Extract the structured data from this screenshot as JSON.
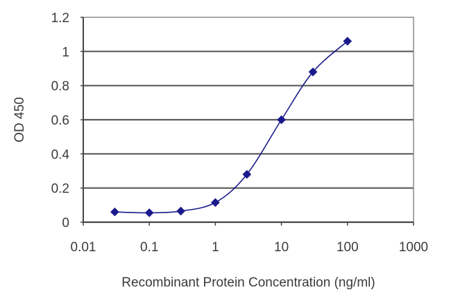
{
  "chart_data": {
    "type": "line",
    "title": "",
    "xlabel": "Recombinant Protein Concentration (ng/ml)",
    "ylabel": "OD 450",
    "xscale": "log",
    "xlim": [
      0.01,
      1000
    ],
    "ylim": [
      0,
      1.2
    ],
    "x_ticks": [
      "0.01",
      "0.1",
      "1",
      "10",
      "100",
      "1000"
    ],
    "y_ticks": [
      "0",
      "0.2",
      "0.4",
      "0.6",
      "0.8",
      "1",
      "1.2"
    ],
    "grid": "horizontal",
    "legend": null,
    "series": [
      {
        "name": "OD 450",
        "color": "#1a1a8c",
        "marker": "diamond",
        "x": [
          0.03,
          0.1,
          0.3,
          1,
          3,
          10,
          30,
          100
        ],
        "values": [
          0.06,
          0.055,
          0.065,
          0.115,
          0.28,
          0.6,
          0.88,
          1.06
        ]
      }
    ]
  },
  "colors": {
    "series": "#1a1a8c",
    "grid": "#5a5a5a",
    "axis": "#333333",
    "text": "#3a3a3a"
  }
}
